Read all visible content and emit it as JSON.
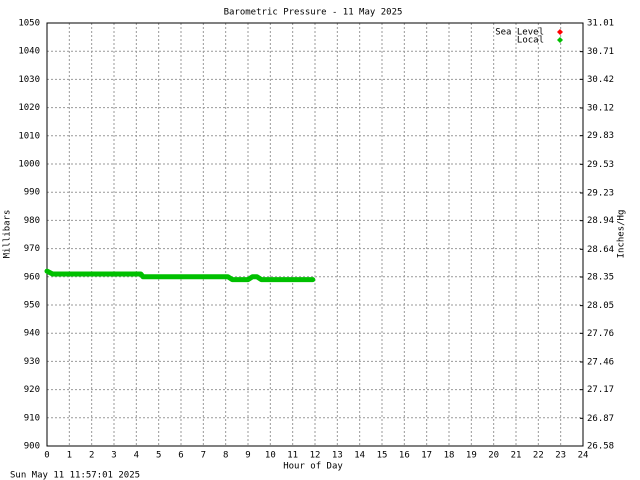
{
  "chart_data": {
    "type": "line",
    "title": "Barometric Pressure - 11 May 2025",
    "x_label": "Hour of Day",
    "y_label": "Millibars",
    "y2_label": "Inches/Hg",
    "timestamp": "Sun May 11 11:57:01 2025",
    "xlim": [
      0,
      24
    ],
    "xticks": [
      0,
      1,
      2,
      3,
      4,
      5,
      6,
      7,
      8,
      9,
      10,
      11,
      12,
      13,
      14,
      15,
      16,
      17,
      18,
      19,
      20,
      21,
      22,
      23,
      24
    ],
    "ylim": [
      900,
      1050
    ],
    "yticks": [
      900,
      910,
      920,
      930,
      940,
      950,
      960,
      970,
      980,
      990,
      1000,
      1010,
      1020,
      1030,
      1040,
      1050
    ],
    "y2lim": [
      26.58,
      31.01
    ],
    "y2ticks": [
      26.58,
      26.87,
      27.17,
      27.46,
      27.76,
      28.05,
      28.35,
      28.64,
      28.94,
      29.23,
      29.53,
      29.83,
      30.12,
      30.42,
      30.71,
      31.01
    ],
    "grid": true,
    "legend": "top-right",
    "series": [
      {
        "name": "Sea Level",
        "color": "#ff0000",
        "x": [],
        "values": []
      },
      {
        "name": "Local",
        "color": "#00c000",
        "x": [
          0,
          0.25,
          4.2,
          4.3,
          8.1,
          8.3,
          9.0,
          9.2,
          9.4,
          9.6,
          11.9
        ],
        "values": [
          962,
          961,
          961,
          960,
          960,
          959,
          959,
          960,
          960,
          959,
          959
        ]
      }
    ]
  }
}
